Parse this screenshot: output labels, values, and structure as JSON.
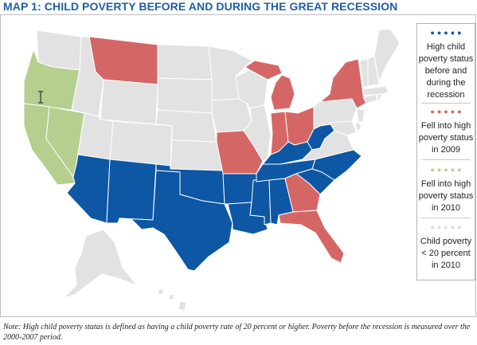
{
  "title": "MAP 1: CHILD POVERTY BEFORE AND DURING THE GREAT RECESSION",
  "legend": [
    {
      "label": "High child poverty status before and during the recession",
      "color": "#0d57a4"
    },
    {
      "label": "Fell into high poverty status in 2009",
      "color": "#d46766"
    },
    {
      "label": "Fell into high poverty status in 2010",
      "color": "#b5cf8f"
    },
    {
      "label": "Child poverty < 20 percent in 2010",
      "color": "#e2e2e2"
    }
  ],
  "colors": {
    "high_before_and_during": "#0d57a4",
    "fell_2009": "#d46766",
    "fell_2010": "#b5cf8f",
    "below_20": "#e2e2e2",
    "border": "#ffffff",
    "title": "#1f5fa3"
  },
  "states": {
    "high_before_and_during": [
      "AZ",
      "NM",
      "TX",
      "OK",
      "AR",
      "LA",
      "MS",
      "AL",
      "TN",
      "KY",
      "WV",
      "SC",
      "NC"
    ],
    "fell_2009": [
      "MT",
      "MI",
      "NY",
      "IN",
      "OH",
      "MO",
      "GA",
      "FL"
    ],
    "fell_2010": [
      "OR",
      "CA",
      "NV"
    ]
  },
  "note": "Note: High child poverty status is defined as having a child poverty rate of 20 percent or higher. Poverty before the recession is measured over the 2000-2007 period."
}
